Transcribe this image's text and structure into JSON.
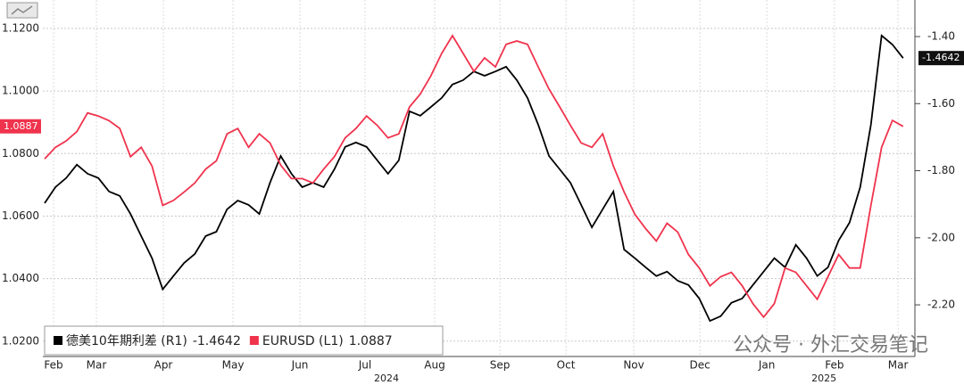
{
  "chart_data": {
    "type": "line",
    "series": [
      {
        "name": "德美10年期利差 (R1)",
        "color": "#000000",
        "axis": "y2",
        "values": [
          -1.897,
          -1.849,
          -1.822,
          -1.782,
          -1.809,
          -1.822,
          -1.862,
          -1.875,
          -1.929,
          -1.995,
          -2.061,
          -2.154,
          -2.114,
          -2.075,
          -2.048,
          -1.995,
          -1.982,
          -1.915,
          -1.889,
          -1.902,
          -1.929,
          -1.836,
          -1.756,
          -1.809,
          -1.849,
          -1.836,
          -1.849,
          -1.796,
          -1.729,
          -1.716,
          -1.729,
          -1.769,
          -1.809,
          -1.769,
          -1.623,
          -1.636,
          -1.61,
          -1.583,
          -1.543,
          -1.53,
          -1.504,
          -1.517,
          -1.504,
          -1.49,
          -1.53,
          -1.583,
          -1.663,
          -1.756,
          -1.796,
          -1.836,
          -1.902,
          -1.969,
          -1.915,
          -1.862,
          -2.035,
          -2.061,
          -2.088,
          -2.114,
          -2.101,
          -2.128,
          -2.141,
          -2.181,
          -2.248,
          -2.234,
          -2.194,
          -2.181,
          -2.141,
          -2.101,
          -2.061,
          -2.088,
          -2.021,
          -2.061,
          -2.114,
          -2.088,
          -2.008,
          -1.955,
          -1.849,
          -1.663,
          -1.397,
          -1.424,
          -1.4642
        ]
      },
      {
        "name": "EURUSD (L1)",
        "color": "#f0334d",
        "values": [
          1.0783,
          1.082,
          1.084,
          1.087,
          1.093,
          1.092,
          1.0905,
          1.088,
          1.079,
          1.082,
          1.076,
          1.0634,
          1.065,
          1.0677,
          1.0706,
          1.075,
          1.0777,
          1.0863,
          1.088,
          1.082,
          1.0863,
          1.0834,
          1.0763,
          1.072,
          1.072,
          1.0706,
          1.075,
          1.079,
          1.085,
          1.088,
          1.092,
          1.089,
          1.085,
          1.0863,
          1.0949,
          1.099,
          1.1049,
          1.112,
          1.1177,
          1.112,
          1.1063,
          1.1106,
          1.1077,
          1.1149,
          1.116,
          1.1149,
          1.1077,
          1.1006,
          1.0949,
          1.089,
          1.0834,
          1.082,
          1.0863,
          1.076,
          1.0677,
          1.0606,
          1.056,
          1.052,
          1.0577,
          1.0549,
          1.0477,
          1.0434,
          1.0377,
          1.0406,
          1.042,
          1.0377,
          1.032,
          1.0277,
          1.032,
          1.0434,
          1.042,
          1.0377,
          1.0334,
          1.0406,
          1.0477,
          1.0434,
          1.0434,
          1.0634,
          1.082,
          1.0906,
          1.0887
        ]
      }
    ],
    "xlim": [
      -0.17,
      81.1
    ],
    "xticks": [
      {
        "value": 0.83,
        "label": "Feb"
      },
      {
        "value": 4.82,
        "label": "Mar"
      },
      {
        "value": 11.06,
        "label": "Apr"
      },
      {
        "value": 17.55,
        "label": "May"
      },
      {
        "value": 23.79,
        "label": "Jun"
      },
      {
        "value": 29.86,
        "label": "Jul"
      },
      {
        "value": 36.35,
        "label": "Aug"
      },
      {
        "value": 42.43,
        "label": "Sep"
      },
      {
        "value": 48.58,
        "label": "Oct"
      },
      {
        "value": 54.9,
        "label": "Nov"
      },
      {
        "value": 61.06,
        "label": "Dec"
      },
      {
        "value": 67.3,
        "label": "Jan"
      },
      {
        "value": 73.6,
        "label": "Feb"
      },
      {
        "value": 79.53,
        "label": "Mar"
      }
    ],
    "year_labels": [
      {
        "value": 31.86,
        "label": "2024"
      },
      {
        "value": 72.63,
        "label": "2025"
      }
    ],
    "ylim": [
      1.0151,
      1.1291
    ],
    "yticks": [
      {
        "value": 1.02,
        "label": "1.0200"
      },
      {
        "value": 1.04,
        "label": "1.0400"
      },
      {
        "value": 1.06,
        "label": "1.0600"
      },
      {
        "value": 1.08,
        "label": "1.0800"
      },
      {
        "value": 1.1,
        "label": "1.1000"
      },
      {
        "value": 1.12,
        "label": "1.1200"
      }
    ],
    "y2lim": [
      -2.354,
      -1.291
    ],
    "y2ticks": [
      {
        "value": -2.2,
        "label": "-2.20"
      },
      {
        "value": -2.0,
        "label": "-2.00"
      },
      {
        "value": -1.8,
        "label": "-1.80"
      },
      {
        "value": -1.6,
        "label": "-1.60"
      },
      {
        "value": -1.4,
        "label": "-1.40"
      }
    ],
    "grid": true,
    "legend": "lower left",
    "watermark": "公众号 · 外汇交易笔记"
  }
}
